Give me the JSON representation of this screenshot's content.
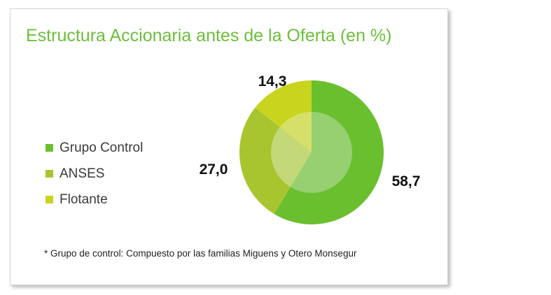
{
  "chart_data": {
    "type": "pie",
    "title": "Estructura Accionaria antes de la Oferta (en %)",
    "categories": [
      "Grupo Control",
      "ANSES",
      "Flotante"
    ],
    "values": [
      58.7,
      27.0,
      14.3
    ],
    "value_labels": [
      "58,7",
      "27,0",
      "14,3"
    ],
    "colors": [
      "#6abf2e",
      "#a8c530",
      "#c8d41e"
    ],
    "inner_colors": [
      "#96d070",
      "#c3d879",
      "#d6e068"
    ],
    "legend_position": "left"
  },
  "footnote": "* Grupo de control: Compuesto por las familias Miguens y Otero Monsegur"
}
